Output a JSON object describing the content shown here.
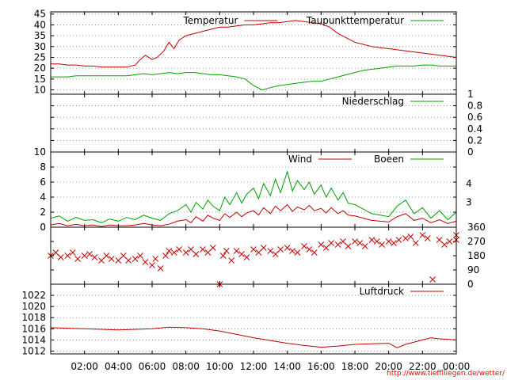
{
  "page": {
    "source_url": "http://www.tiefflliegen.de/wetter/",
    "colors": {
      "background": "#ffffff",
      "axes": "#000000",
      "grid": "#7f7f7f",
      "series_red": "#c00000",
      "series_green": "#00a000",
      "url_text": "#ff0000"
    }
  },
  "chart_data": [
    {
      "id": "temperature",
      "type": "line",
      "title": "",
      "xlabel": "",
      "ylabel": "",
      "ylim": [
        8,
        46
      ],
      "y_ticks": [
        10,
        15,
        20,
        25,
        30,
        35,
        40,
        45
      ],
      "y_axis_side": "left",
      "grid": "horizontal-dotted",
      "legend_placement": "top-right",
      "series": [
        {
          "name": "Temperatur",
          "color": "#c00000",
          "x": [
            0,
            0.5,
            1,
            1.5,
            2,
            2.5,
            3,
            3.5,
            4,
            4.5,
            5,
            5.3,
            5.6,
            6,
            6.3,
            6.7,
            7,
            7.3,
            7.6,
            8,
            8.5,
            9,
            9.5,
            10,
            10.5,
            11,
            11.5,
            12,
            12.5,
            13,
            13.5,
            14,
            14.5,
            15,
            15.5,
            16,
            16.5,
            17,
            17.5,
            18,
            18.5,
            19,
            19.5,
            20,
            20.5,
            21,
            21.5,
            22,
            22.5,
            23,
            23.5,
            24
          ],
          "values": [
            22,
            22,
            21.5,
            21.5,
            21,
            21,
            20.5,
            20.5,
            20.5,
            20.5,
            21.5,
            24,
            26,
            24,
            25,
            28,
            32,
            29,
            33,
            35,
            36,
            37,
            38,
            39,
            39,
            39.5,
            40,
            40,
            40.5,
            41,
            41,
            41.5,
            42,
            41.5,
            41,
            40.5,
            39,
            36,
            34,
            32,
            31,
            30,
            29.5,
            29,
            28.5,
            28,
            27.5,
            27,
            26.5,
            26,
            25.5,
            25
          ]
        },
        {
          "name": "Taupunkttemperatur",
          "color": "#00a000",
          "x": [
            0,
            0.5,
            1,
            1.5,
            2,
            2.5,
            3,
            3.5,
            4,
            4.5,
            5,
            5.5,
            6,
            6.5,
            7,
            7.5,
            8,
            8.5,
            9,
            9.5,
            10,
            10.5,
            11,
            11.5,
            12,
            12.5,
            13,
            13.5,
            14,
            14.5,
            15,
            15.5,
            16,
            16.5,
            17,
            17.5,
            18,
            18.5,
            19,
            19.5,
            20,
            20.5,
            21,
            21.5,
            22,
            22.5,
            23,
            23.5,
            24
          ],
          "values": [
            16,
            16,
            16,
            16.5,
            16.5,
            16.5,
            16.5,
            16.5,
            16.5,
            16.5,
            17,
            17.5,
            17,
            17.5,
            18,
            17.5,
            18,
            18,
            17.5,
            17,
            17,
            16.5,
            16,
            15,
            12,
            10,
            11,
            12,
            12.5,
            13,
            13.5,
            14,
            14,
            15,
            16,
            17,
            18,
            19,
            19.5,
            20,
            20.5,
            21,
            21,
            21,
            21.5,
            21.5,
            21,
            21,
            21
          ]
        }
      ]
    },
    {
      "id": "precipitation",
      "type": "line",
      "title": "",
      "xlabel": "",
      "ylabel": "",
      "ylim": [
        0,
        1
      ],
      "y_ticks": [
        0,
        0.2,
        0.4,
        0.6,
        0.8,
        1
      ],
      "y_axis_side": "right",
      "grid": "horizontal-dotted",
      "legend_placement": "top-right",
      "series": [
        {
          "name": "Niederschlag",
          "color": "#00a000",
          "x": [
            0,
            24
          ],
          "values": [
            0,
            0
          ]
        }
      ]
    },
    {
      "id": "wind",
      "type": "line",
      "title": "",
      "xlabel": "",
      "ylabel": "",
      "ylim": [
        0,
        10
      ],
      "y_ticks": [
        0,
        2,
        4,
        6,
        8,
        10
      ],
      "right_axis_labels": [
        {
          "label": "3",
          "value": 3.3
        },
        {
          "label": "4",
          "value": 5.8
        }
      ],
      "grid": "horizontal-dotted",
      "legend_placement": "top-right",
      "series": [
        {
          "name": "Wind",
          "color": "#c00000",
          "x": [
            0,
            0.5,
            1,
            1.5,
            2,
            2.5,
            3,
            3.5,
            4,
            4.5,
            5,
            5.5,
            6,
            6.5,
            7,
            7.5,
            8,
            8.3,
            8.6,
            9,
            9.3,
            9.6,
            10,
            10.3,
            10.6,
            11,
            11.3,
            11.6,
            12,
            12.3,
            12.6,
            13,
            13.3,
            13.6,
            14,
            14.3,
            14.6,
            15,
            15.3,
            15.6,
            16,
            16.3,
            16.6,
            17,
            17.3,
            17.6,
            18,
            18.5,
            19,
            19.5,
            20,
            20.5,
            21,
            21.5,
            22,
            22.5,
            23,
            23.5,
            24
          ],
          "values": [
            0.3,
            0.5,
            0.2,
            0.4,
            0.2,
            0.3,
            0.1,
            0.3,
            0.2,
            0.2,
            0.3,
            0.5,
            0.3,
            0.2,
            0.4,
            0.8,
            1,
            0.6,
            1.4,
            0.8,
            1.6,
            1.2,
            0.9,
            1.8,
            1.3,
            2,
            1.4,
            1.9,
            2.2,
            1.6,
            2.6,
            1.8,
            2.8,
            2.2,
            3,
            2.1,
            2.7,
            2.3,
            2.9,
            2.2,
            2.5,
            1.9,
            2.6,
            1.8,
            2.2,
            1.6,
            1.5,
            1.2,
            0.9,
            0.8,
            0.7,
            1.4,
            1.8,
            0.9,
            1.2,
            0.6,
            1,
            0.5,
            0.8
          ]
        },
        {
          "name": "Boeen",
          "color": "#00a000",
          "x": [
            0,
            0.5,
            1,
            1.5,
            2,
            2.5,
            3,
            3.5,
            4,
            4.5,
            5,
            5.5,
            6,
            6.5,
            7,
            7.5,
            8,
            8.3,
            8.6,
            9,
            9.3,
            9.6,
            10,
            10.3,
            10.6,
            11,
            11.3,
            11.6,
            12,
            12.3,
            12.6,
            13,
            13.3,
            13.6,
            14,
            14.3,
            14.6,
            15,
            15.3,
            15.6,
            16,
            16.3,
            16.6,
            17,
            17.3,
            17.6,
            18,
            18.5,
            19,
            19.5,
            20,
            20.5,
            21,
            21.5,
            22,
            22.5,
            23,
            23.5,
            24
          ],
          "values": [
            1.2,
            1.5,
            0.8,
            1.3,
            0.9,
            1,
            0.6,
            1.1,
            0.8,
            1.3,
            1,
            1.6,
            1.2,
            0.9,
            1.8,
            2.2,
            3,
            2,
            3.3,
            2.4,
            3.6,
            2.8,
            2.2,
            4,
            3,
            4.6,
            3.2,
            4.4,
            5.2,
            3.8,
            5.8,
            4.2,
            6.4,
            4.6,
            7.4,
            4.8,
            6.2,
            5,
            6,
            4.4,
            5.6,
            4,
            5.2,
            3.6,
            4.6,
            3.2,
            3,
            2.4,
            1.8,
            1.6,
            1.4,
            2.8,
            3.6,
            1.8,
            2.6,
            1.2,
            2.2,
            1,
            2
          ]
        }
      ]
    },
    {
      "id": "wind-direction",
      "type": "scatter",
      "title": "",
      "xlabel": "",
      "ylabel": "",
      "ylim": [
        0,
        360
      ],
      "y_ticks": [
        0,
        90,
        180,
        270,
        360
      ],
      "y_axis_side": "right",
      "grid": "none",
      "marker": "x",
      "series": [
        {
          "name": "",
          "color": "#c00000",
          "x": [
            0,
            0.3,
            0.6,
            1,
            1.3,
            1.6,
            2,
            2.3,
            2.6,
            3,
            3.3,
            3.6,
            4,
            4.3,
            4.6,
            5,
            5.3,
            5.6,
            6,
            6.2,
            6.5,
            6.8,
            7,
            7.3,
            7.6,
            8,
            8.3,
            8.6,
            9,
            9.3,
            9.6,
            10,
            10.2,
            10.4,
            10.7,
            11,
            11.3,
            11.6,
            12,
            12.3,
            12.6,
            13,
            13.3,
            13.6,
            14,
            14.3,
            14.6,
            15,
            15.3,
            15.6,
            16,
            16.3,
            16.6,
            17,
            17.3,
            17.6,
            18,
            18.3,
            18.6,
            19,
            19.3,
            19.6,
            20,
            20.3,
            20.6,
            21,
            21.3,
            21.6,
            22,
            22.3,
            22.6,
            23,
            23.3,
            23.6,
            24,
            24
          ],
          "values": [
            180,
            200,
            170,
            180,
            200,
            160,
            180,
            190,
            170,
            150,
            180,
            160,
            150,
            180,
            150,
            160,
            180,
            140,
            120,
            160,
            100,
            180,
            210,
            200,
            220,
            200,
            220,
            190,
            220,
            200,
            230,
            0,
            180,
            210,
            150,
            210,
            190,
            170,
            220,
            200,
            230,
            210,
            190,
            220,
            230,
            210,
            200,
            240,
            220,
            200,
            250,
            230,
            260,
            250,
            270,
            240,
            270,
            260,
            240,
            280,
            270,
            250,
            270,
            260,
            280,
            290,
            300,
            260,
            310,
            290,
            30,
            280,
            250,
            270,
            310,
            280
          ]
        }
      ]
    },
    {
      "id": "pressure",
      "type": "line",
      "title": "",
      "xlabel": "",
      "ylabel": "",
      "ylim": [
        1011.5,
        1024
      ],
      "y_ticks": [
        1012,
        1014,
        1016,
        1018,
        1020,
        1022
      ],
      "y_axis_side": "left",
      "grid": "horizontal-dotted",
      "legend_placement": "top-right",
      "x_ticks": [
        {
          "label": "02:00",
          "value": 2
        },
        {
          "label": "04:00",
          "value": 4
        },
        {
          "label": "06:00",
          "value": 6
        },
        {
          "label": "08:00",
          "value": 8
        },
        {
          "label": "10:00",
          "value": 10
        },
        {
          "label": "12:00",
          "value": 12
        },
        {
          "label": "14:00",
          "value": 14
        },
        {
          "label": "16:00",
          "value": 16
        },
        {
          "label": "18:00",
          "value": 18
        },
        {
          "label": "20:00",
          "value": 20
        },
        {
          "label": "22:00",
          "value": 22
        },
        {
          "label": "00:00",
          "value": 24
        }
      ],
      "series": [
        {
          "name": "Luftdruck",
          "color": "#c00000",
          "x": [
            0,
            1,
            2,
            3,
            4,
            5,
            6,
            7,
            8,
            9,
            10,
            11,
            12,
            13,
            14,
            15,
            16,
            17,
            18,
            19,
            20,
            20.5,
            21,
            22,
            22.5,
            23,
            24
          ],
          "values": [
            1016.2,
            1016.1,
            1016.0,
            1015.9,
            1015.8,
            1015.9,
            1016.0,
            1016.3,
            1016.2,
            1016.0,
            1015.6,
            1015.0,
            1014.4,
            1013.9,
            1013.4,
            1013.0,
            1012.7,
            1012.9,
            1013.2,
            1013.3,
            1013.4,
            1012.6,
            1013.2,
            1014.0,
            1014.4,
            1014.2,
            1014.0
          ]
        }
      ]
    }
  ]
}
